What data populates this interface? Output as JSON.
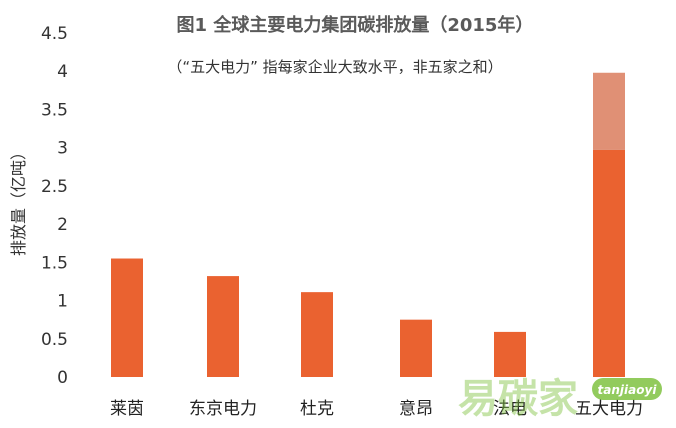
{
  "chart_data": {
    "type": "bar",
    "title": "图1 全球主要电力集团碳排放量（2015年）",
    "subtitle": "（“五大电力” 指每家企业大致水平，非五家之和）",
    "xlabel": "",
    "ylabel": "排放量（亿吨）",
    "ylim": [
      0,
      4.5
    ],
    "yticks": [
      0,
      0.5,
      1,
      1.5,
      2,
      2.5,
      3,
      3.5,
      4,
      4.5
    ],
    "ytick_labels": [
      "0",
      "0.5",
      "1",
      "1.5",
      "2",
      "2.5",
      "3",
      "3.5",
      "4",
      "4.5"
    ],
    "categories": [
      "莱茵",
      "东京电力",
      "杜克",
      "意昂",
      "法电",
      "五大电力"
    ],
    "series": [
      {
        "values": [
          1.55,
          1.32,
          1.11,
          0.75,
          0.59,
          2.97
        ],
        "color": "#ea6230"
      },
      {
        "values": [
          0,
          0,
          0,
          0,
          0,
          1.01
        ],
        "color": "#e09075"
      }
    ],
    "grid": false,
    "legend": "none",
    "stacked": true
  },
  "watermark": {
    "text": "易碳家",
    "tag": "tanjiaoyi",
    "color": "#7fc241"
  }
}
